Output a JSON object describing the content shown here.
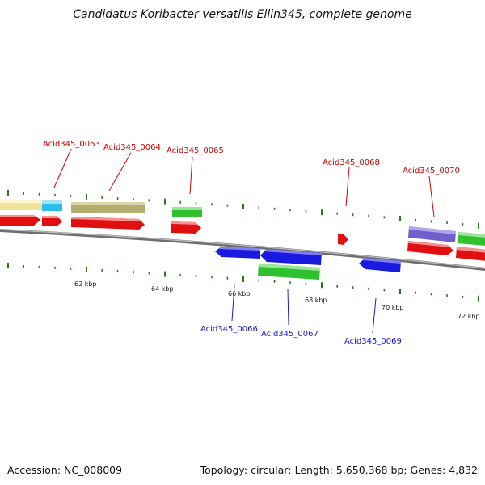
{
  "title": "Candidatus Koribacter versatilis Ellin345, complete genome",
  "footer": {
    "accession": "Accession: NC_008009",
    "stats": "Topology: circular; Length: 5,650,368 bp; Genes: 4,832"
  },
  "colors": {
    "forward_label": "#cc0000",
    "reverse_label": "#1a1acc",
    "backbone": "#808080",
    "tick": "#2a7a1a"
  },
  "scale_labels": [
    "62 kbp",
    "64 kbp",
    "66 kbp",
    "68 kbp",
    "70 kbp",
    "72 kbp"
  ],
  "gene_labels": [
    {
      "text": "Acid345_0063",
      "strand": "forward"
    },
    {
      "text": "Acid345_0064",
      "strand": "forward"
    },
    {
      "text": "Acid345_0065",
      "strand": "forward"
    },
    {
      "text": "Acid345_0066",
      "strand": "reverse"
    },
    {
      "text": "Acid345_0067",
      "strand": "reverse"
    },
    {
      "text": "Acid345_0068",
      "strand": "forward"
    },
    {
      "text": "Acid345_0069",
      "strand": "reverse"
    },
    {
      "text": "Acid345_0070",
      "strand": "forward"
    }
  ]
}
